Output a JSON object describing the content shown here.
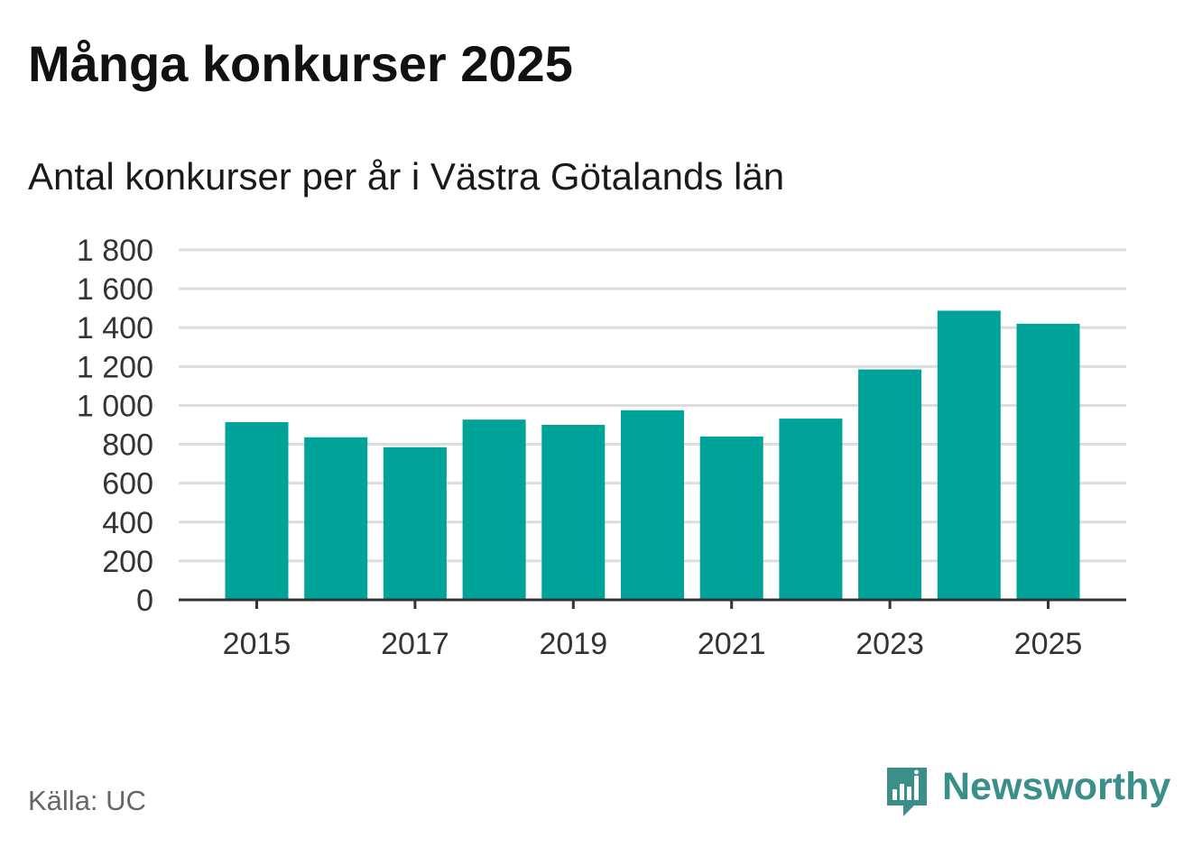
{
  "title": "Många konkurser 2025",
  "subtitle": "Antal konkurser per år i Västra Götalands län",
  "source": "Källa: UC",
  "brand": {
    "name": "Newsworthy",
    "logo_icon": "bar-chart-speech-bubble-icon"
  },
  "colors": {
    "bar": "#00a398",
    "grid": "#dddddd",
    "axis": "#333333",
    "brand": "#3a8f8a",
    "source": "#666666"
  },
  "chart_data": {
    "type": "bar",
    "title": "Många konkurser 2025",
    "subtitle": "Antal konkurser per år i Västra Götalands län",
    "xlabel": "",
    "ylabel": "",
    "categories": [
      "2015",
      "2016",
      "2017",
      "2018",
      "2019",
      "2020",
      "2021",
      "2022",
      "2023",
      "2024",
      "2025"
    ],
    "values": [
      914,
      836,
      785,
      927,
      900,
      975,
      840,
      932,
      1185,
      1487,
      1420
    ],
    "x_tick_labels": [
      "2015",
      "2017",
      "2019",
      "2021",
      "2023",
      "2025"
    ],
    "y_ticks": [
      0,
      200,
      400,
      600,
      800,
      1000,
      1200,
      1400,
      1600,
      1800
    ],
    "y_tick_labels": [
      "0",
      "200",
      "400",
      "600",
      "800",
      "1 000",
      "1 200",
      "1 400",
      "1 600",
      "1 800"
    ],
    "ylim": [
      0,
      1800
    ],
    "grid": true,
    "legend": "none"
  }
}
